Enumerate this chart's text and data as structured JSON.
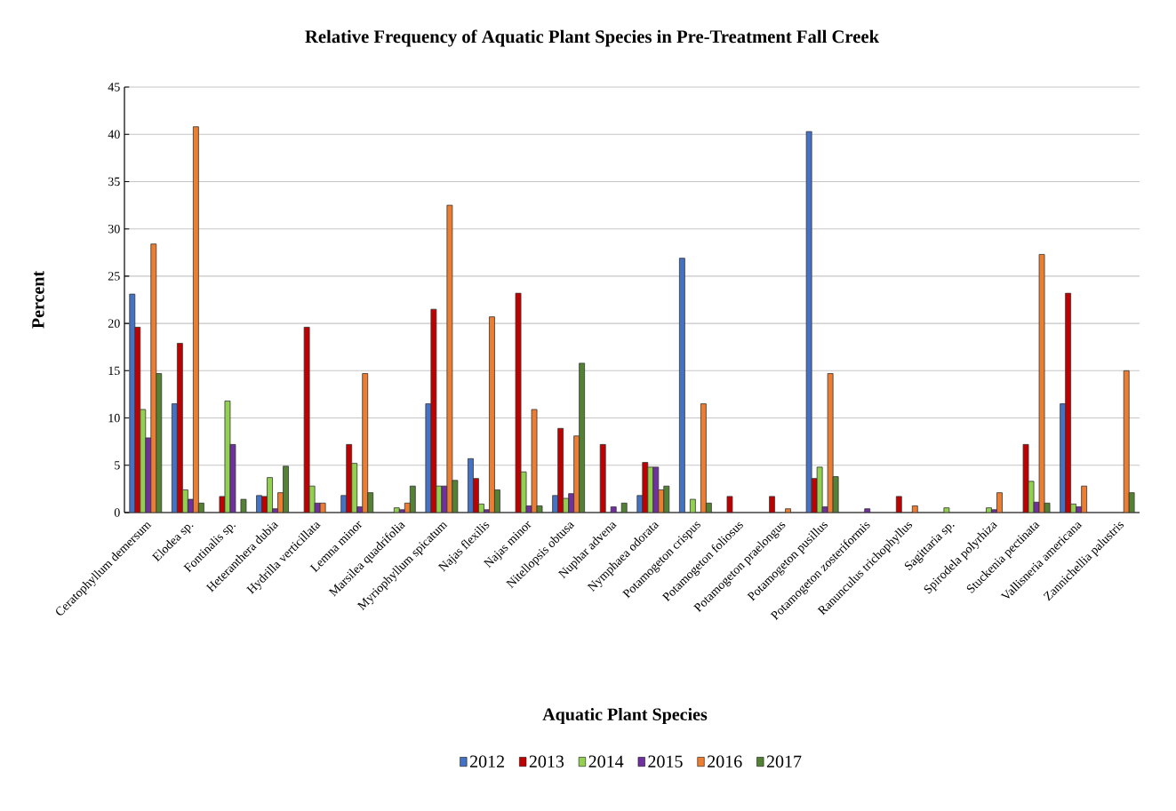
{
  "chart_data": {
    "type": "bar",
    "title": "Relative Frequency of Aquatic Plant Species in Pre-Treatment  Fall Creek",
    "xlabel": "Aquatic Plant Species",
    "ylabel": "Percent",
    "categories": [
      "Ceratophyllum demersum",
      "Elodea sp.",
      "Fontinalis sp.",
      "Heteranthera dubia",
      "Hydrilla verticillata",
      "Lemna minor",
      "Marsilea quadrifolia",
      "Myriophyllum spicatum",
      "Najas flexilis",
      "Najas minor",
      "Nitellopsis obtusa",
      "Nuphar advena",
      "Nymphaea odorata",
      "Potamogeton crispus",
      "Potamogeton foliosus",
      "Potamogeton praelongus",
      "Potamogeton pusillus",
      "Potamogeton zosteriformis",
      "Ranunculus trichophyllus",
      "Sagittaria sp.",
      "Spirodela polyrhiza",
      "Stuckenia pectinata",
      "Vallisneria americana",
      "Zannichellia palustris"
    ],
    "series": [
      {
        "name": "2012",
        "color": "#4472c4",
        "values": [
          23.1,
          11.5,
          null,
          1.8,
          null,
          1.8,
          null,
          11.5,
          5.7,
          null,
          1.8,
          null,
          1.8,
          26.9,
          null,
          null,
          40.3,
          null,
          null,
          null,
          null,
          null,
          11.5,
          null
        ]
      },
      {
        "name": "2013",
        "color": "#c00000",
        "values": [
          19.6,
          17.9,
          1.7,
          1.7,
          19.6,
          7.2,
          null,
          21.5,
          3.6,
          23.2,
          8.9,
          7.2,
          5.3,
          null,
          1.7,
          1.7,
          3.6,
          null,
          1.7,
          null,
          null,
          7.2,
          23.2,
          null
        ]
      },
      {
        "name": "2014",
        "color": "#92d050",
        "values": [
          10.9,
          2.4,
          11.8,
          3.7,
          2.8,
          5.2,
          0.5,
          2.8,
          0.9,
          4.3,
          1.5,
          null,
          4.8,
          1.4,
          null,
          null,
          4.8,
          null,
          null,
          0.5,
          0.5,
          3.3,
          0.9,
          null
        ]
      },
      {
        "name": "2015",
        "color": "#7030a0",
        "values": [
          7.9,
          1.4,
          7.2,
          0.4,
          1.0,
          0.6,
          0.3,
          2.8,
          0.3,
          0.7,
          2.0,
          0.6,
          4.8,
          null,
          null,
          null,
          0.6,
          0.4,
          null,
          null,
          0.3,
          1.1,
          0.6,
          null
        ]
      },
      {
        "name": "2016",
        "color": "#ed7d31",
        "values": [
          28.4,
          40.8,
          null,
          2.1,
          1.0,
          14.7,
          1.0,
          32.5,
          20.7,
          10.9,
          8.1,
          null,
          2.4,
          11.5,
          null,
          0.4,
          14.7,
          null,
          0.7,
          null,
          2.1,
          27.3,
          2.8,
          15.0
        ]
      },
      {
        "name": "2017",
        "color": "#548235",
        "values": [
          14.7,
          1.0,
          1.4,
          4.9,
          null,
          2.1,
          2.8,
          3.4,
          2.4,
          0.7,
          15.8,
          1.0,
          2.8,
          1.0,
          null,
          null,
          3.8,
          null,
          null,
          null,
          null,
          1.0,
          null,
          2.1
        ]
      }
    ],
    "ylim": [
      0,
      45
    ],
    "yticks": [
      0,
      5,
      10,
      15,
      20,
      25,
      30,
      35,
      40,
      45
    ],
    "grid": "y",
    "legend": "bottom"
  }
}
